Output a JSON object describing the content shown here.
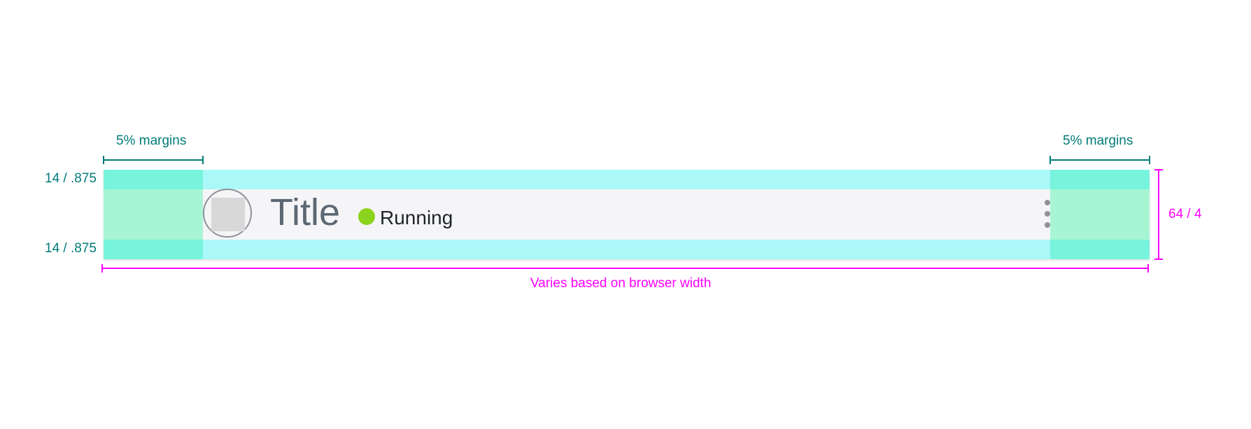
{
  "header_bar": {
    "title": "Title",
    "status": {
      "label": "Running",
      "color": "#8bd21c"
    },
    "avatar_icon": "avatar-placeholder-icon",
    "menu_icon": "kebab-menu-icon"
  },
  "annotations": {
    "left_margin_label": "5% margins",
    "right_margin_label": "5% margins",
    "top_padding_label": "14 / .875",
    "bottom_padding_label": "14 / .875",
    "height_label": "64 / 4",
    "width_label": "Varies based on browser width"
  },
  "colors": {
    "margin_zone": "#78f3dc",
    "padding_zone": "#aaf8f8",
    "content_background": "#f5f5f8",
    "teal_annotation": "#007b78",
    "magenta_annotation": "#ff00ff"
  }
}
